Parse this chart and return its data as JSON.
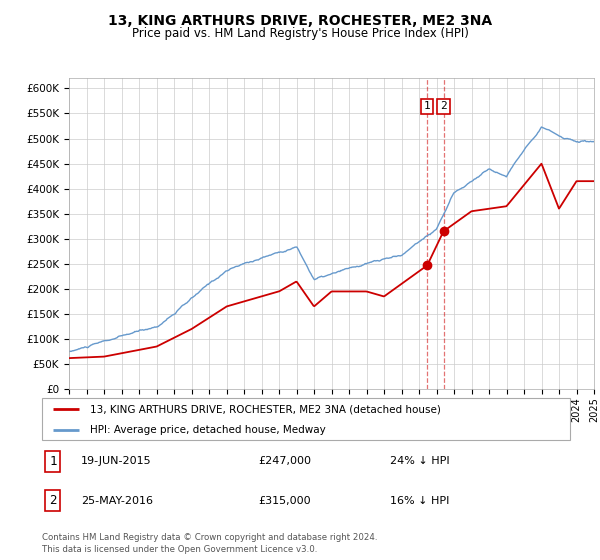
{
  "title": "13, KING ARTHURS DRIVE, ROCHESTER, ME2 3NA",
  "subtitle": "Price paid vs. HM Land Registry's House Price Index (HPI)",
  "legend_label_1": "13, KING ARTHURS DRIVE, ROCHESTER, ME2 3NA (detached house)",
  "legend_label_2": "HPI: Average price, detached house, Medway",
  "annotation_1_date": "19-JUN-2015",
  "annotation_1_price": "£247,000",
  "annotation_1_hpi": "24% ↓ HPI",
  "annotation_1_year": 2015.47,
  "annotation_1_value": 247000,
  "annotation_2_date": "25-MAY-2016",
  "annotation_2_price": "£315,000",
  "annotation_2_hpi": "16% ↓ HPI",
  "annotation_2_year": 2016.4,
  "annotation_2_value": 315000,
  "red_color": "#cc0000",
  "blue_color": "#6699cc",
  "background_color": "#ffffff",
  "grid_color": "#cccccc",
  "footer_text": "Contains HM Land Registry data © Crown copyright and database right 2024.\nThis data is licensed under the Open Government Licence v3.0.",
  "ylim_min": 0,
  "ylim_max": 620000,
  "xmin": 1995,
  "xmax": 2025
}
